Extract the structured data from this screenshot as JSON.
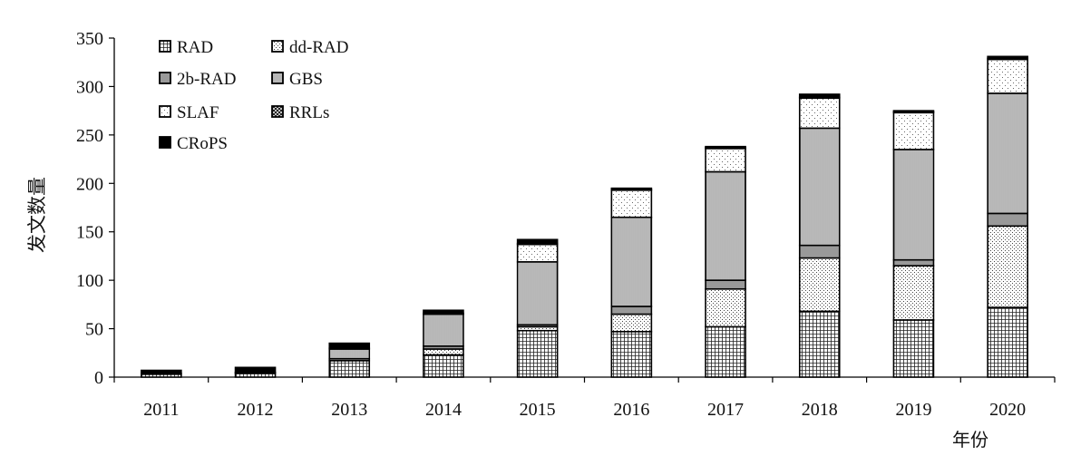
{
  "chart_data": {
    "type": "bar",
    "stacked": true,
    "title": "",
    "xlabel": "年份",
    "ylabel": "发文数量",
    "ylim": [
      0,
      350
    ],
    "yticks": [
      "0",
      "50",
      "100",
      "150",
      "200",
      "250",
      "300",
      "350"
    ],
    "categories": [
      "2011",
      "2012",
      "2013",
      "2014",
      "2015",
      "2016",
      "2017",
      "2018",
      "2019",
      "2020"
    ],
    "legend_position": "top-left",
    "grid": false,
    "series": [
      {
        "name": "RAD",
        "pattern": "grid",
        "values": [
          3,
          4,
          17,
          23,
          48,
          47,
          52,
          68,
          59,
          72
        ]
      },
      {
        "name": "dd-RAD",
        "pattern": "fine-dots",
        "values": [
          0,
          0,
          0,
          6,
          4,
          18,
          39,
          55,
          56,
          84
        ]
      },
      {
        "name": "2b-RAD",
        "pattern": "gray",
        "values": [
          0,
          0,
          2,
          3,
          2,
          8,
          9,
          13,
          6,
          13
        ]
      },
      {
        "name": "GBS",
        "pattern": "vlines",
        "values": [
          0,
          0,
          10,
          33,
          65,
          92,
          112,
          121,
          114,
          124
        ]
      },
      {
        "name": "SLAF",
        "pattern": "sparse-dots",
        "values": [
          0,
          0,
          0,
          0,
          18,
          28,
          24,
          31,
          38,
          35
        ]
      },
      {
        "name": "RRLs",
        "pattern": "crosshatch",
        "values": [
          1,
          1,
          1,
          1,
          1,
          1,
          1,
          1,
          1,
          1
        ]
      },
      {
        "name": "CRoPS",
        "pattern": "black",
        "values": [
          3,
          5,
          5,
          3,
          4,
          1,
          1,
          3,
          1,
          2
        ]
      }
    ]
  }
}
